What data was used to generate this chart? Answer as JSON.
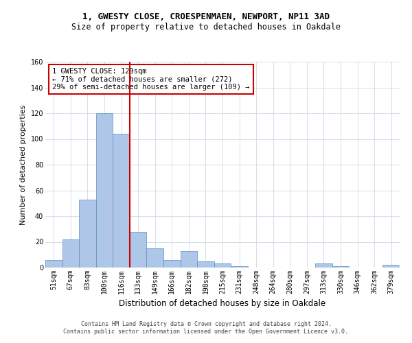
{
  "title_line1": "1, GWESTY CLOSE, CROESPENMAEN, NEWPORT, NP11 3AD",
  "title_line2": "Size of property relative to detached houses in Oakdale",
  "xlabel": "Distribution of detached houses by size in Oakdale",
  "ylabel": "Number of detached properties",
  "categories": [
    "51sqm",
    "67sqm",
    "83sqm",
    "100sqm",
    "116sqm",
    "133sqm",
    "149sqm",
    "166sqm",
    "182sqm",
    "198sqm",
    "215sqm",
    "231sqm",
    "248sqm",
    "264sqm",
    "280sqm",
    "297sqm",
    "313sqm",
    "330sqm",
    "346sqm",
    "362sqm",
    "379sqm"
  ],
  "values": [
    6,
    22,
    53,
    120,
    104,
    28,
    15,
    6,
    13,
    5,
    3,
    1,
    0,
    0,
    0,
    0,
    3,
    1,
    0,
    0,
    2
  ],
  "bar_color": "#aec6e8",
  "bar_edge_color": "#5a8fc0",
  "vline_x": 4.5,
  "vline_color": "#cc0000",
  "ylim": [
    0,
    160
  ],
  "yticks": [
    0,
    20,
    40,
    60,
    80,
    100,
    120,
    140,
    160
  ],
  "annotation_box_text": "1 GWESTY CLOSE: 129sqm\n← 71% of detached houses are smaller (272)\n29% of semi-detached houses are larger (109) →",
  "annotation_box_color": "#cc0000",
  "footer_text": "Contains HM Land Registry data © Crown copyright and database right 2024.\nContains public sector information licensed under the Open Government Licence v3.0.",
  "background_color": "#ffffff",
  "grid_color": "#d0d8e8",
  "title_fontsize": 9,
  "subtitle_fontsize": 8.5,
  "ylabel_fontsize": 8,
  "xlabel_fontsize": 8.5,
  "tick_fontsize": 7,
  "annot_fontsize": 7.5,
  "footer_fontsize": 6
}
